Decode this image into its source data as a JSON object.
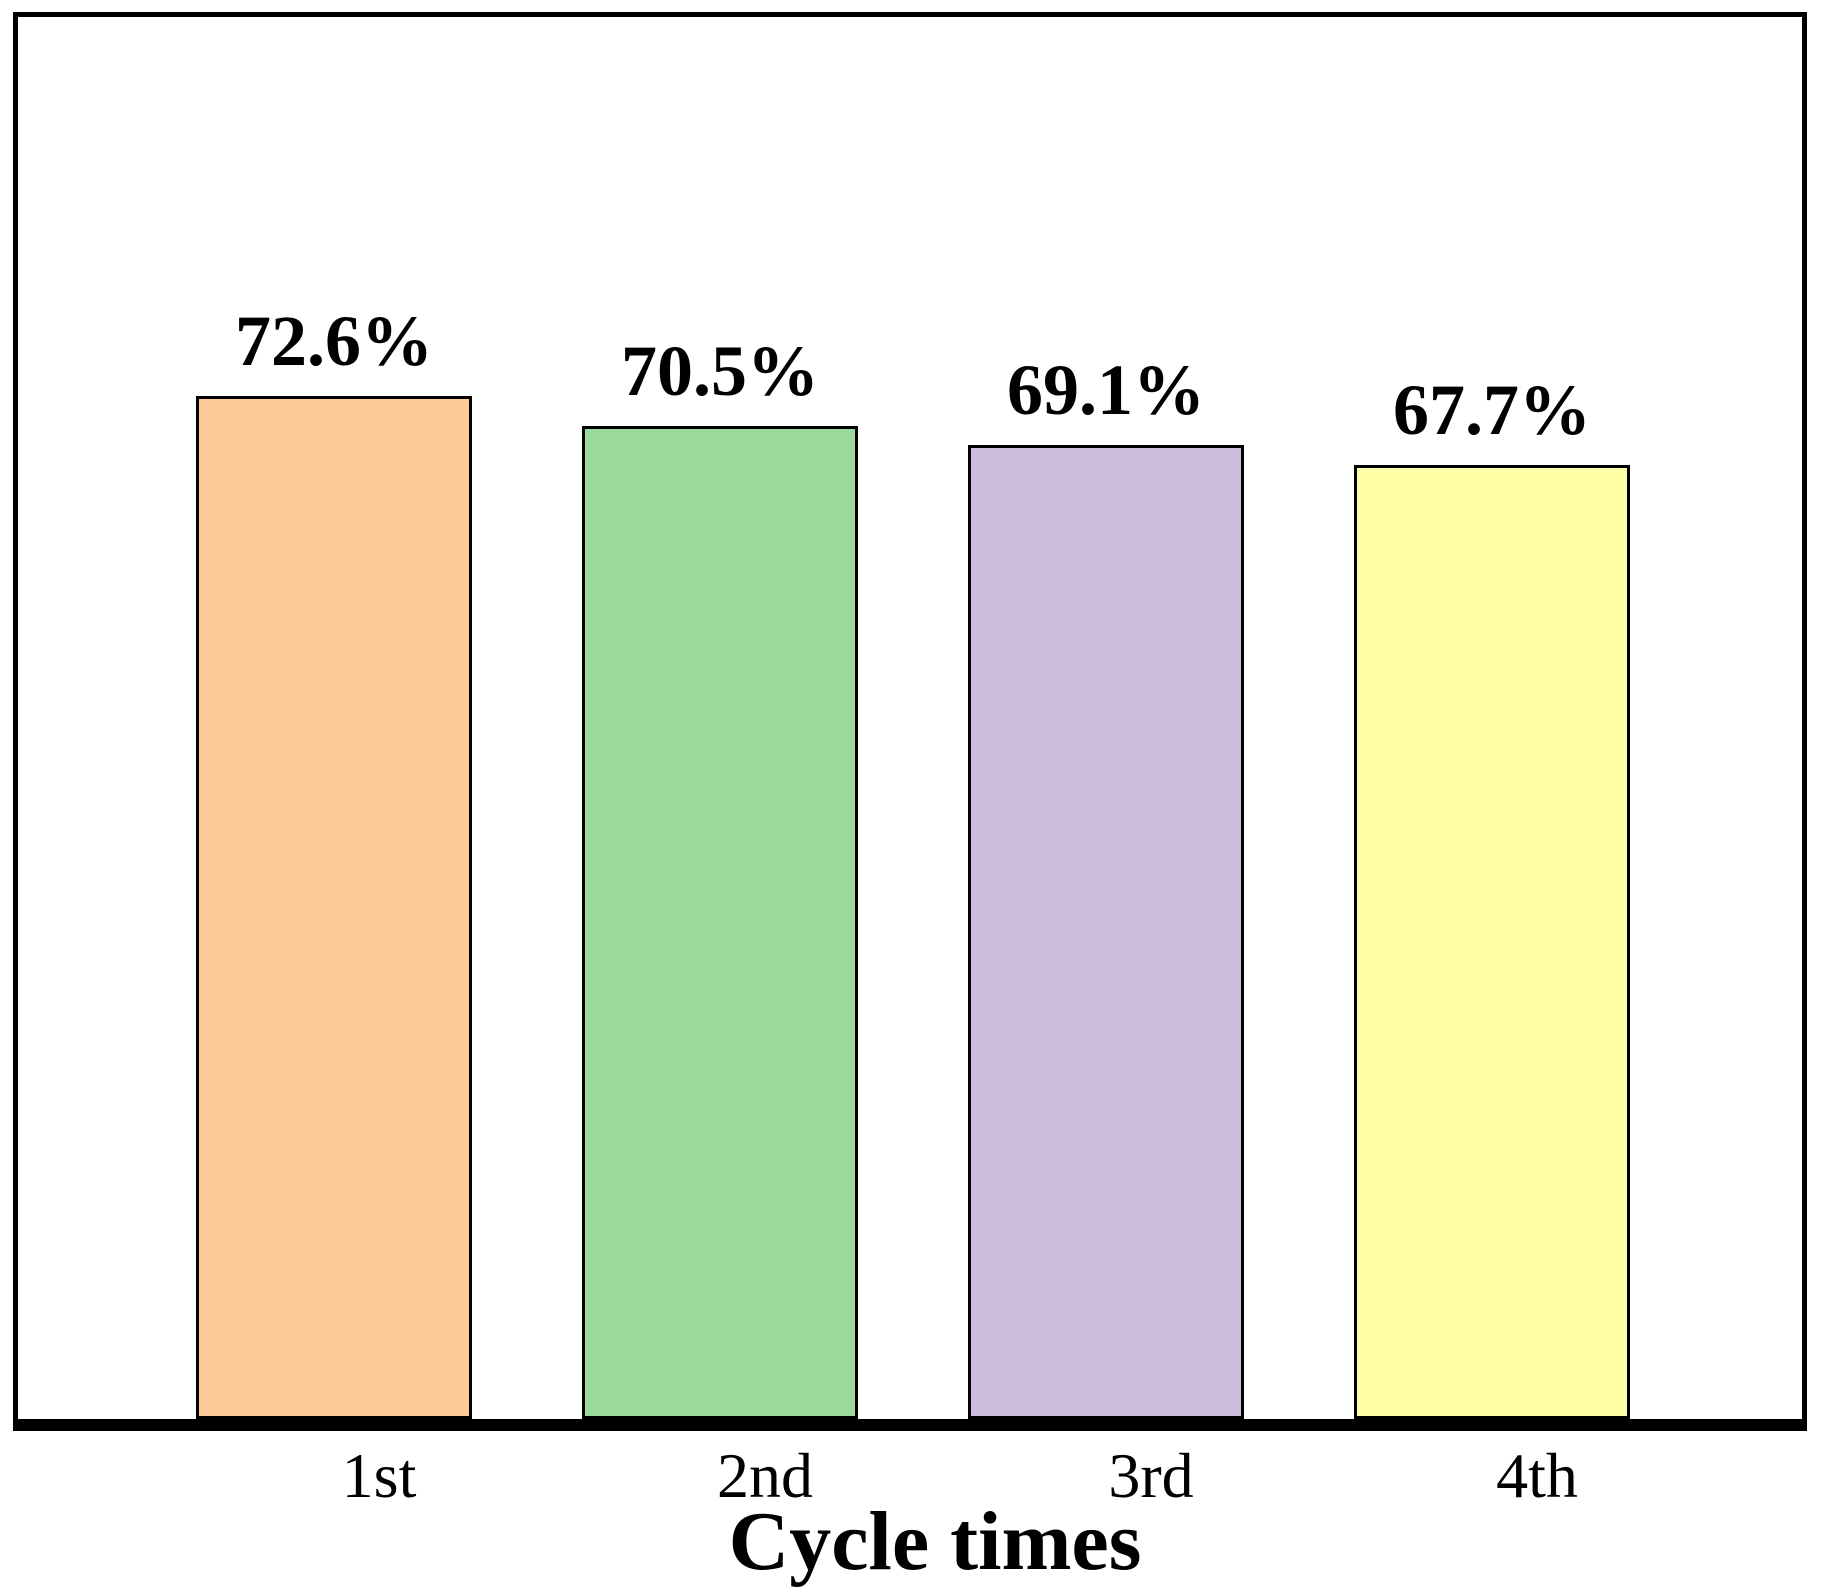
{
  "chart_data": {
    "type": "bar",
    "title": "",
    "xlabel": "Cycle times",
    "ylabel": "",
    "ylim": [
      0,
      100
    ],
    "grid": false,
    "y_axis_ticks_visible": false,
    "categories": [
      "1st",
      "2nd",
      "3rd",
      "4th"
    ],
    "values": [
      72.6,
      70.5,
      69.1,
      67.7
    ],
    "value_labels": [
      "72.6%",
      "70.5%",
      "69.1%",
      "67.7%"
    ],
    "bar_colors": [
      "#FDCA98",
      "#99DA99",
      "#CCBDDF",
      "#FEFFA7"
    ],
    "bar_border_color": "#000000",
    "frame_color": "#000000",
    "background_color": "#ffffff"
  }
}
